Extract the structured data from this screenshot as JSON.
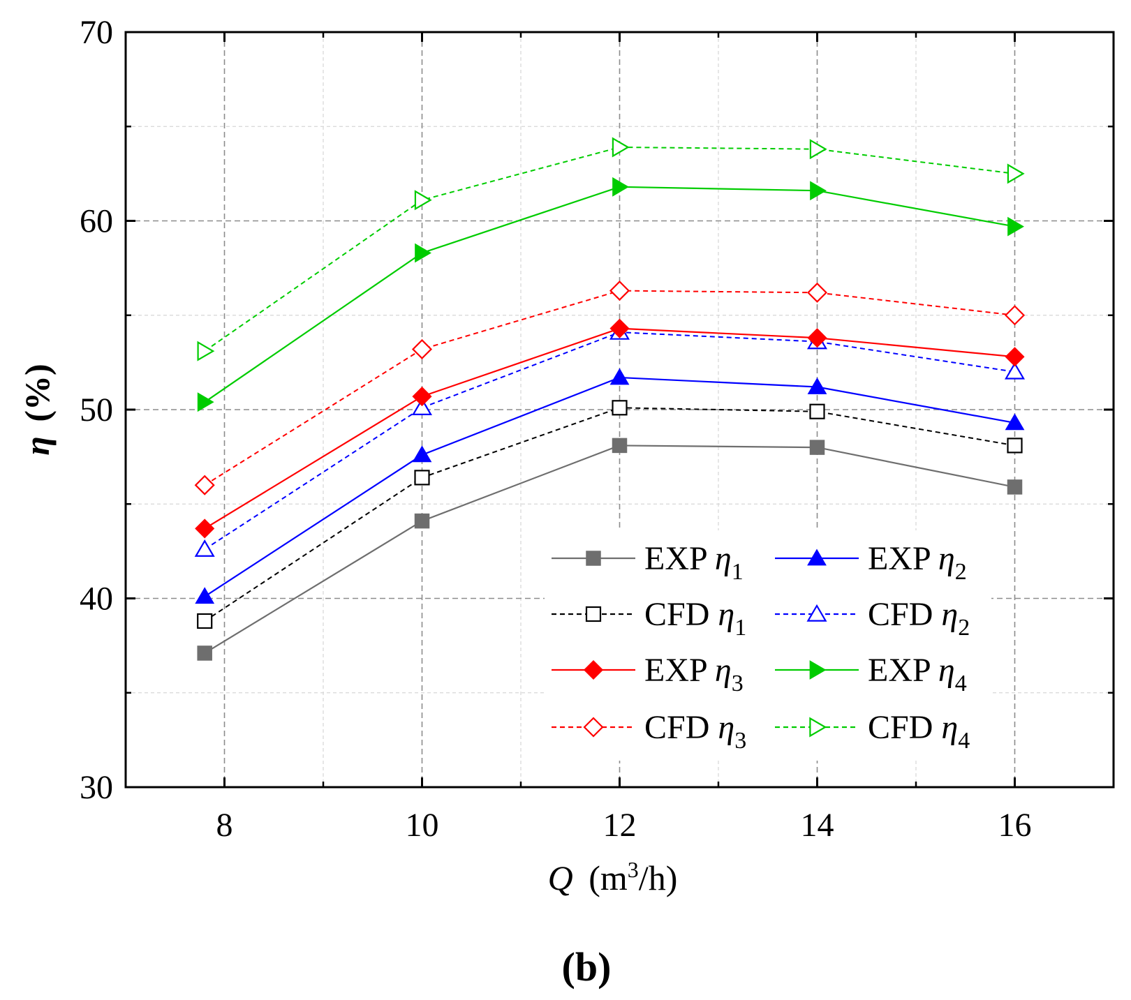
{
  "chart_data": {
    "type": "line",
    "xlabel_symbol": "Q",
    "xlabel_unit_pre": "(m",
    "xlabel_unit_sup": "3",
    "xlabel_unit_post": "/h)",
    "ylabel_symbol": "η",
    "ylabel_unit": "(%)",
    "panel_label": "(b)",
    "xlim": [
      7,
      17
    ],
    "ylim": [
      30,
      70
    ],
    "xticks": [
      8,
      10,
      12,
      14,
      16
    ],
    "yticks": [
      30,
      40,
      50,
      60,
      70
    ],
    "grid": true,
    "legend_position": "bottom-right",
    "x": [
      7.8,
      10,
      12,
      14,
      16
    ],
    "series": [
      {
        "name_prefix": "EXP",
        "name_symbol": "η",
        "name_sub": "1",
        "values": [
          37.1,
          44.1,
          48.1,
          48.0,
          45.9
        ],
        "color": "#6e6e6e",
        "dash": "solid",
        "marker": "square",
        "filled": true
      },
      {
        "name_prefix": "EXP",
        "name_symbol": "η",
        "name_sub": "2",
        "values": [
          40.1,
          47.6,
          51.7,
          51.2,
          49.3
        ],
        "color": "#0000ff",
        "dash": "solid",
        "marker": "triangle-up",
        "filled": true
      },
      {
        "name_prefix": "CFD",
        "name_symbol": "η",
        "name_sub": "1",
        "values": [
          38.8,
          46.4,
          50.1,
          49.9,
          48.1
        ],
        "color": "#000000",
        "dash": "dashed",
        "marker": "square",
        "filled": false
      },
      {
        "name_prefix": "CFD",
        "name_symbol": "η",
        "name_sub": "2",
        "values": [
          42.6,
          50.1,
          54.1,
          53.6,
          52.0
        ],
        "color": "#0000ff",
        "dash": "dashed",
        "marker": "triangle-up",
        "filled": false
      },
      {
        "name_prefix": "EXP",
        "name_symbol": "η",
        "name_sub": "3",
        "values": [
          43.7,
          50.7,
          54.3,
          53.8,
          52.8
        ],
        "color": "#ff0000",
        "dash": "solid",
        "marker": "diamond",
        "filled": true
      },
      {
        "name_prefix": "EXP",
        "name_symbol": "η",
        "name_sub": "4",
        "values": [
          50.4,
          58.3,
          61.8,
          61.6,
          59.7
        ],
        "color": "#00cc00",
        "dash": "solid",
        "marker": "triangle-right",
        "filled": true
      },
      {
        "name_prefix": "CFD",
        "name_symbol": "η",
        "name_sub": "3",
        "values": [
          46.0,
          53.2,
          56.3,
          56.2,
          55.0
        ],
        "color": "#ff0000",
        "dash": "dashed",
        "marker": "diamond",
        "filled": false
      },
      {
        "name_prefix": "CFD",
        "name_symbol": "η",
        "name_sub": "4",
        "values": [
          53.1,
          61.1,
          63.9,
          63.8,
          62.5
        ],
        "color": "#00cc00",
        "dash": "dashed",
        "marker": "triangle-right",
        "filled": false
      }
    ]
  }
}
